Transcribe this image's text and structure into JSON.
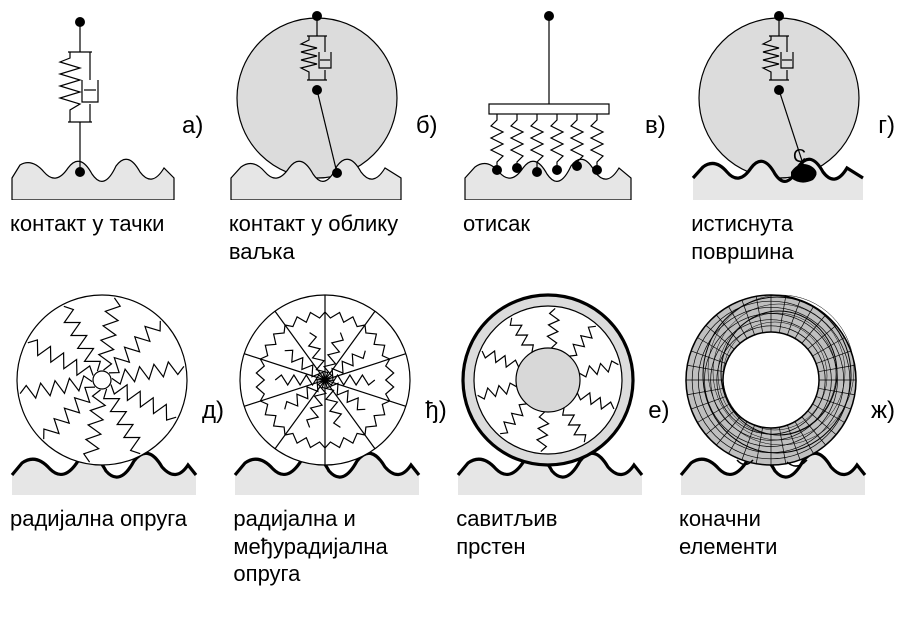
{
  "colors": {
    "stroke": "#000000",
    "fill_ground": "#e6e6e6",
    "fill_circle": "#dcdcdc",
    "fill_hub": "#d8d8d8",
    "fill_white": "#ffffff"
  },
  "stroke_width": {
    "thin": 1.2,
    "thick": 3.2
  },
  "font_size": {
    "label": 24,
    "caption": 22
  },
  "panels": {
    "a": {
      "label": "а)",
      "caption": "контакт у тачки"
    },
    "b": {
      "label": "б)",
      "caption": "контакт у облику\nваљка"
    },
    "v": {
      "label": "в)",
      "caption": "отисак"
    },
    "g": {
      "label": "г)",
      "caption": "истиснута\nповршина",
      "contact_letter": "С"
    },
    "d": {
      "label": "д)",
      "caption": "радијална опруга"
    },
    "dj": {
      "label": "ђ)",
      "caption": "радијална и\nмеђурадијална\nопруга"
    },
    "e": {
      "label": "е)",
      "caption": "савитљив\nпрстен"
    },
    "zh": {
      "label": "ж)",
      "caption": "коначни\nелементи"
    }
  }
}
